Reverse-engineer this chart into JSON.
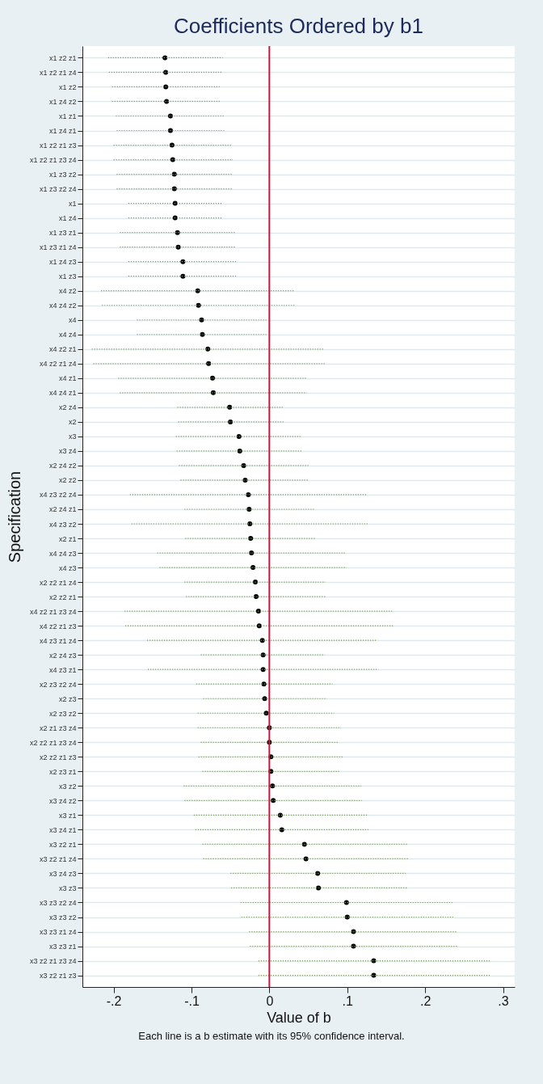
{
  "chart_data": {
    "type": "scatter",
    "orientation": "horizontal",
    "title": "Coefficients Ordered by b1",
    "xlabel": "Value of b",
    "ylabel": "Specification",
    "annotations": [
      "Each line is a b estimate with its 95% confidence interval."
    ],
    "categories": [
      "x1 z2 z1",
      "x1 z2 z1 z4",
      "x1 z2",
      "x1 z4 z2",
      "x1 z1",
      "x1 z4 z1",
      "x1 z2 z1 z3",
      "x1 z2 z1 z3 z4",
      "x1 z3 z2",
      "x1 z3 z2 z4",
      "x1",
      "x1 z4",
      "x1 z3 z1",
      "x1 z3 z1 z4",
      "x1 z4 z3",
      "x1 z3",
      "x4 z2",
      "x4 z4 z2",
      "x4",
      "x4 z4",
      "x4 z2 z1",
      "x4 z2 z1 z4",
      "x4 z1",
      "x4 z4 z1",
      "x2 z4",
      "x2",
      "x3",
      "x3 z4",
      "x2 z4 z2",
      "x2 z2",
      "x4 z3 z2 z4",
      "x2 z4 z1",
      "x4 z3 z2",
      "x2 z1",
      "x4 z4 z3",
      "x4 z3",
      "x2 z2 z1 z4",
      "x2 z2 z1",
      "x4 z2 z1 z3 z4",
      "x4 z2 z1 z3",
      "x4 z3 z1 z4",
      "x2 z4 z3",
      "x4 z3 z1",
      "x2 z3 z2 z4",
      "x2 z3",
      "x2 z3 z2",
      "x2 z1 z3 z4",
      "x2 z2 z1 z3 z4",
      "x2 z2 z1 z3",
      "x2 z3 z1",
      "x3 z2",
      "x3 z4 z2",
      "x3 z1",
      "x3 z4 z1",
      "x3 z2 z1",
      "x3 z2 z1 z4",
      "x3 z4 z3",
      "x3 z3",
      "x3 z3 z2 z4",
      "x3 z3 z2",
      "x3 z3 z1 z4",
      "x3 z3 z1",
      "x3 z2 z1 z3 z4",
      "x3 z2 z1 z3"
    ],
    "series": [
      {
        "color": "#000000",
        "values": [
          -0.134,
          -0.133,
          -0.133,
          -0.132,
          -0.127,
          -0.127,
          -0.125,
          -0.124,
          -0.122,
          -0.122,
          -0.121,
          -0.121,
          -0.118,
          -0.117,
          -0.111,
          -0.111,
          -0.092,
          -0.091,
          -0.087,
          -0.086,
          -0.079,
          -0.078,
          -0.073,
          -0.072,
          -0.051,
          -0.05,
          -0.039,
          -0.038,
          -0.033,
          -0.031,
          -0.027,
          -0.026,
          -0.025,
          -0.024,
          -0.023,
          -0.021,
          -0.018,
          -0.017,
          -0.014,
          -0.013,
          -0.009,
          -0.008,
          -0.008,
          -0.007,
          -0.006,
          -0.004,
          0.0,
          0.0,
          0.002,
          0.002,
          0.004,
          0.005,
          0.014,
          0.016,
          0.045,
          0.047,
          0.062,
          0.063,
          0.099,
          0.1,
          0.108,
          0.108,
          0.134,
          0.134
        ],
        "errors": [
          [
            -0.207,
            -0.06
          ],
          [
            -0.206,
            -0.06
          ],
          [
            -0.202,
            -0.063
          ],
          [
            -0.202,
            -0.062
          ],
          [
            -0.197,
            -0.058
          ],
          [
            -0.196,
            -0.057
          ],
          [
            -0.2,
            -0.048
          ],
          [
            -0.2,
            -0.047
          ],
          [
            -0.196,
            -0.047
          ],
          [
            -0.196,
            -0.047
          ],
          [
            -0.181,
            -0.061
          ],
          [
            -0.181,
            -0.061
          ],
          [
            -0.192,
            -0.043
          ],
          [
            -0.192,
            -0.043
          ],
          [
            -0.181,
            -0.041
          ],
          [
            -0.181,
            -0.041
          ],
          [
            -0.216,
            0.033
          ],
          [
            -0.215,
            0.033
          ],
          [
            -0.17,
            -0.002
          ],
          [
            -0.17,
            -0.002
          ],
          [
            -0.228,
            0.069
          ],
          [
            -0.226,
            0.071
          ],
          [
            -0.194,
            0.047
          ],
          [
            -0.192,
            0.048
          ],
          [
            -0.118,
            0.017
          ],
          [
            -0.117,
            0.019
          ],
          [
            -0.12,
            0.042
          ],
          [
            -0.119,
            0.042
          ],
          [
            -0.116,
            0.05
          ],
          [
            -0.114,
            0.051
          ],
          [
            -0.179,
            0.126
          ],
          [
            -0.109,
            0.059
          ],
          [
            -0.177,
            0.128
          ],
          [
            -0.108,
            0.06
          ],
          [
            -0.144,
            0.098
          ],
          [
            -0.141,
            0.099
          ],
          [
            -0.109,
            0.072
          ],
          [
            -0.107,
            0.073
          ],
          [
            -0.186,
            0.159
          ],
          [
            -0.185,
            0.16
          ],
          [
            -0.157,
            0.138
          ],
          [
            -0.088,
            0.071
          ],
          [
            -0.156,
            0.14
          ],
          [
            -0.094,
            0.081
          ],
          [
            -0.085,
            0.074
          ],
          [
            -0.092,
            0.083
          ],
          [
            -0.092,
            0.092
          ],
          [
            -0.088,
            0.089
          ],
          [
            -0.091,
            0.095
          ],
          [
            -0.086,
            0.091
          ],
          [
            -0.11,
            0.118
          ],
          [
            -0.109,
            0.119
          ],
          [
            -0.097,
            0.126
          ],
          [
            -0.095,
            0.127
          ],
          [
            -0.086,
            0.177
          ],
          [
            -0.085,
            0.178
          ],
          [
            -0.05,
            0.175
          ],
          [
            -0.049,
            0.177
          ],
          [
            -0.037,
            0.235
          ],
          [
            -0.036,
            0.236
          ],
          [
            -0.026,
            0.241
          ],
          [
            -0.025,
            0.242
          ],
          [
            -0.014,
            0.284
          ],
          [
            -0.014,
            0.284
          ]
        ]
      }
    ],
    "xlim": [
      -0.24,
      0.315
    ],
    "xticks": [
      {
        "value": -0.2,
        "label": "-.2"
      },
      {
        "value": -0.1,
        "label": "-.1"
      },
      0,
      {
        "value": 0.1,
        "label": ".1"
      },
      {
        "value": 0.2,
        "label": ".2"
      },
      {
        "value": 0.3,
        "label": ".3"
      }
    ],
    "ref_lines": [
      {
        "axis": "x",
        "value": 0,
        "color": "#c8173c"
      }
    ],
    "grid": "y",
    "marker": "circle"
  }
}
